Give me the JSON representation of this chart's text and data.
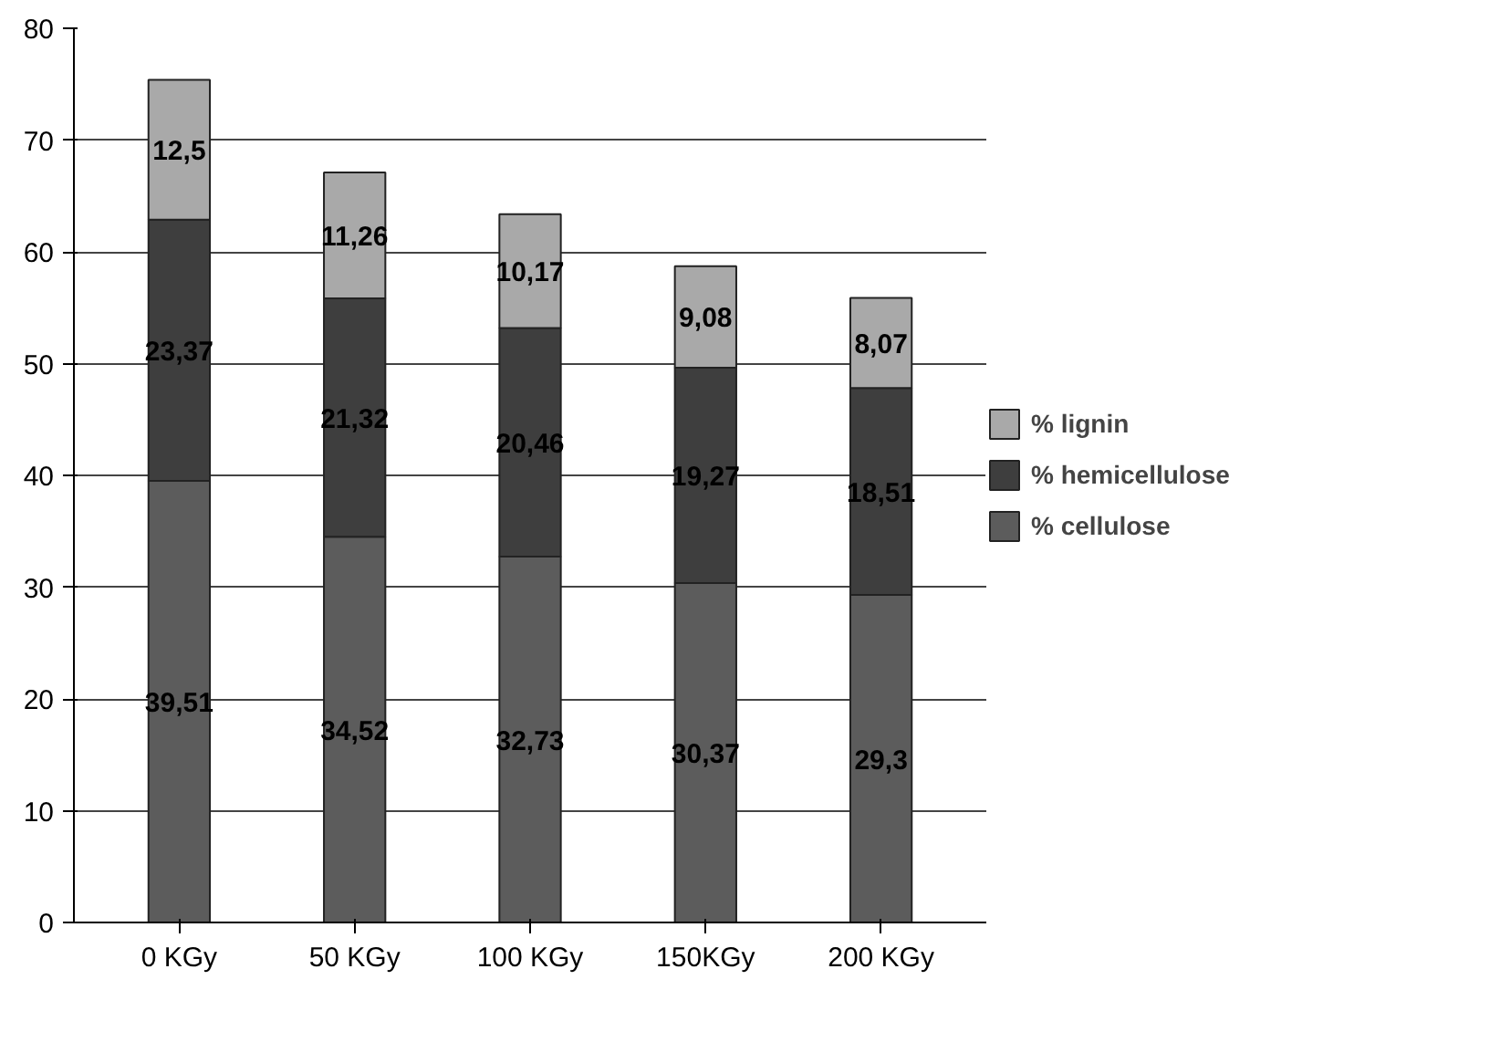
{
  "chart_data": {
    "type": "bar",
    "stacked": true,
    "categories": [
      "0 KGy",
      "50 KGy",
      "100 KGy",
      "150KGy",
      "200 KGy"
    ],
    "series": [
      {
        "name": "% cellulose",
        "color": "#5c5c5c",
        "values": [
          39.51,
          34.52,
          32.73,
          30.37,
          29.3
        ],
        "value_labels": [
          "39,51",
          "34,52",
          "32,73",
          "30,37",
          "29,3"
        ]
      },
      {
        "name": "% hemicellulose",
        "color": "#3e3e3e",
        "values": [
          23.37,
          21.32,
          20.46,
          19.27,
          18.51
        ],
        "value_labels": [
          "23,37",
          "21,32",
          "20,46",
          "19,27",
          "18,51"
        ]
      },
      {
        "name": "% lignin",
        "color": "#a9a9a9",
        "values": [
          12.5,
          11.26,
          10.17,
          9.08,
          8.07
        ],
        "value_labels": [
          "12,5",
          "11,26",
          "10,17",
          "9,08",
          "8,07"
        ]
      }
    ],
    "ylim": [
      0,
      80
    ],
    "yticks": [
      0,
      10,
      20,
      30,
      40,
      50,
      60,
      70,
      80
    ],
    "grid": "y",
    "legend": "right"
  }
}
